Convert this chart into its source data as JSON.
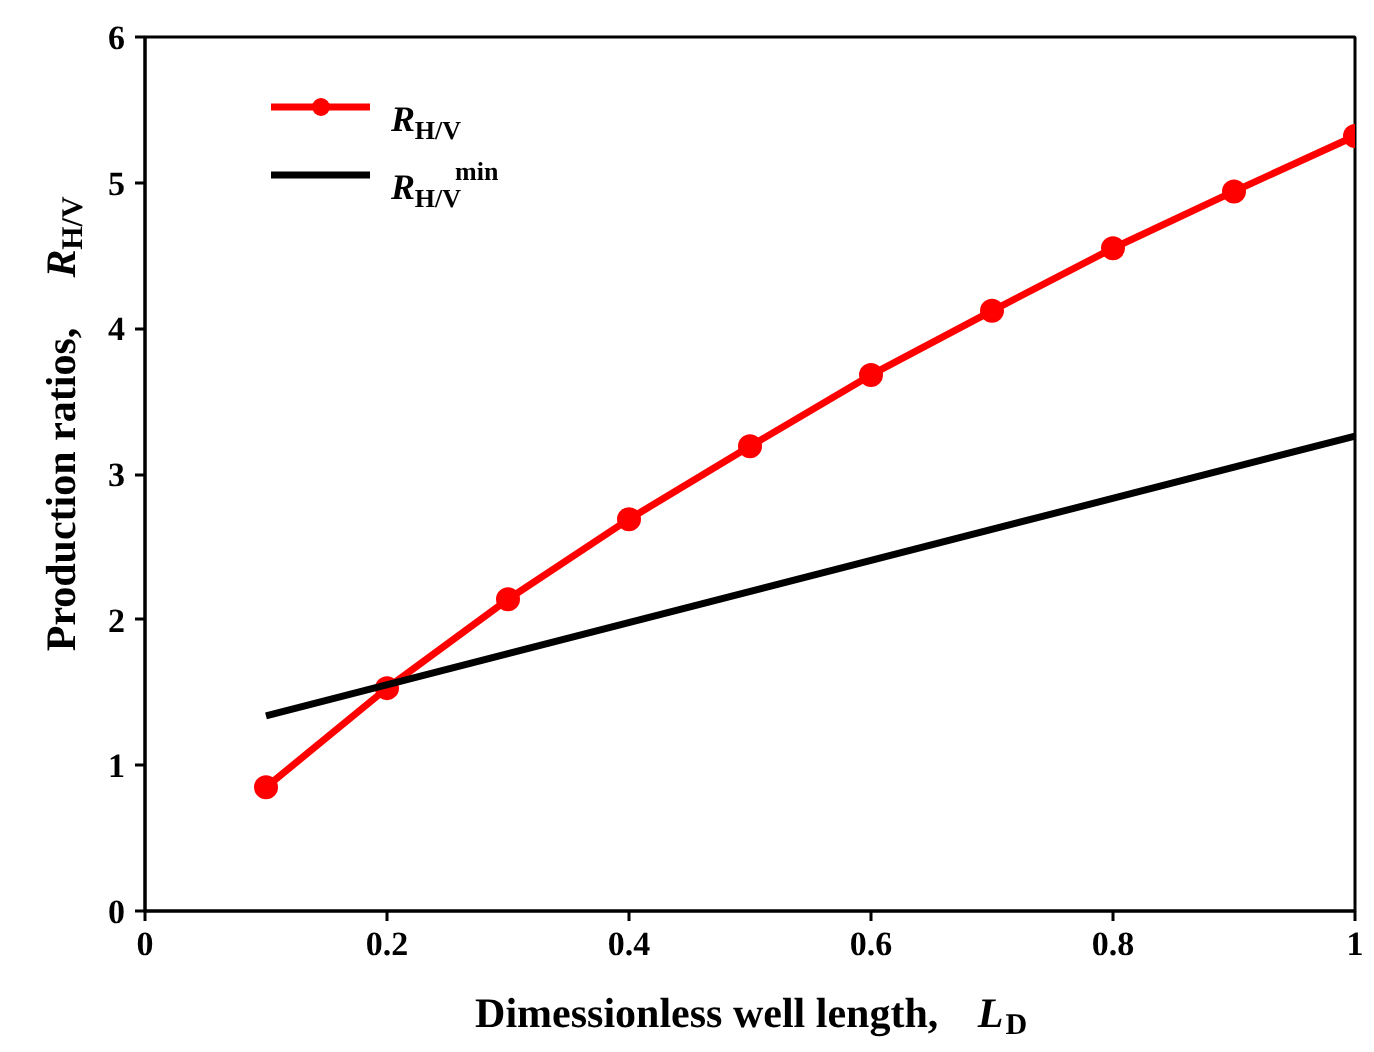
{
  "chart_data": {
    "type": "line",
    "xlabel": "Dimessionless well length, L$_{D}$",
    "ylabel": "Production ratios, R$_{H/V}$",
    "x": [
      0.1,
      0.2,
      0.3,
      0.4,
      0.5,
      0.6,
      0.7,
      0.8,
      0.9,
      1.0
    ],
    "series": [
      {
        "name": "R$_{H/V}$",
        "color": "#ff0000",
        "marker": "circle",
        "values": [
          0.85,
          1.53,
          2.14,
          2.69,
          3.19,
          3.68,
          4.12,
          4.55,
          4.94,
          5.32
        ]
      },
      {
        "name": "R$_{H/V}$$^{min}$",
        "color": "#000000",
        "marker": "none",
        "x": [
          0.1,
          1.0
        ],
        "values": [
          1.34,
          3.26
        ]
      }
    ],
    "xlim": [
      0,
      1
    ],
    "ylim": [
      0,
      6
    ],
    "xticks": [
      0,
      0.2,
      0.4,
      0.6,
      0.8,
      1
    ],
    "yticks": [
      0,
      1,
      2,
      3,
      4,
      5,
      6
    ],
    "grid": false,
    "legend": "top left"
  }
}
